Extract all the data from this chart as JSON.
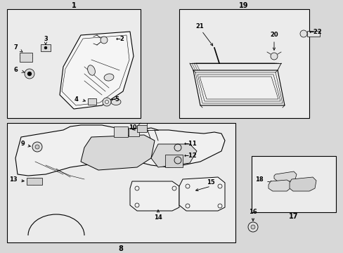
{
  "bg_color": "#d8d8d8",
  "box_bg": "#e8e8e8",
  "fig_width": 4.89,
  "fig_height": 3.6,
  "dpi": 100
}
